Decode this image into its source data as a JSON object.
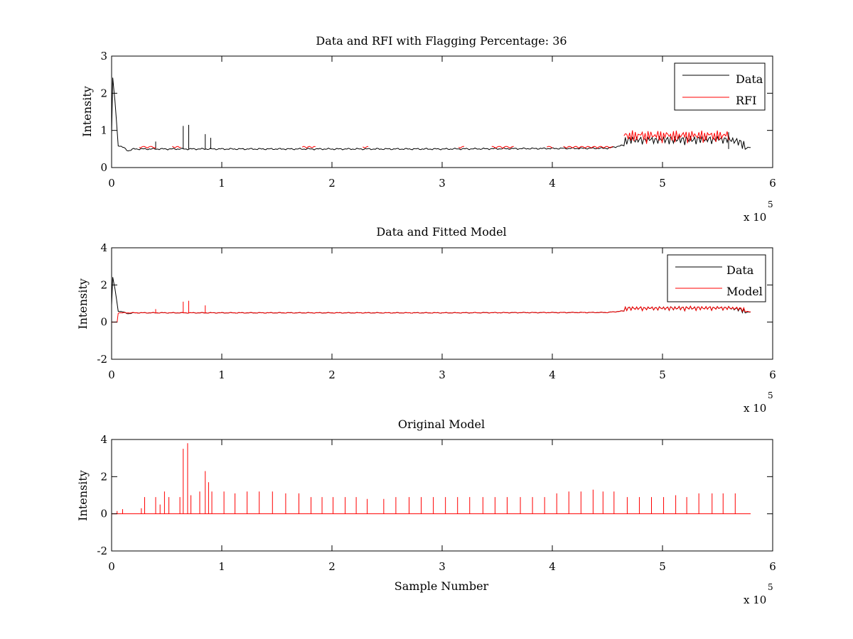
{
  "chart_data": [
    {
      "type": "line",
      "title": "Data and RFI with Flagging Percentage: 36",
      "xlabel": "",
      "ylabel": "Intensity",
      "xlim": [
        0,
        600000
      ],
      "ylim": [
        0,
        3
      ],
      "xticks": [
        "0",
        "1",
        "2",
        "3",
        "4",
        "5",
        "6"
      ],
      "yticks": [
        "0",
        "1",
        "2",
        "3"
      ],
      "x_multiplier_label": "x 10",
      "x_multiplier_exp": "5",
      "legend_position": "top-right",
      "series": [
        {
          "name": "Data",
          "color": "#000000",
          "baseline": 0.5,
          "points": [
            [
              0,
              0.9
            ],
            [
              1000,
              2.4
            ],
            [
              3000,
              1.8
            ],
            [
              6000,
              0.6
            ],
            [
              10000,
              0.55
            ],
            [
              15000,
              0.45
            ],
            [
              20000,
              0.5
            ],
            [
              100000,
              0.5
            ],
            [
              300000,
              0.5
            ],
            [
              450000,
              0.52
            ],
            [
              465000,
              0.6
            ],
            [
              560000,
              0.62
            ],
            [
              575000,
              0.5
            ],
            [
              580000,
              0.55
            ]
          ],
          "spikes": [
            [
              65000,
              1.12
            ],
            [
              70000,
              1.15
            ],
            [
              85000,
              0.9
            ],
            [
              90000,
              0.8
            ],
            [
              40000,
              0.7
            ],
            [
              560000,
              0.95
            ]
          ]
        },
        {
          "name": "RFI",
          "color": "#ff0000",
          "segments": [
            [
              25000,
              40000
            ],
            [
              55000,
              63000
            ],
            [
              173000,
              185000
            ],
            [
              228000,
              233000
            ],
            [
              315000,
              320000
            ],
            [
              345000,
              365000
            ],
            [
              395000,
              400000
            ],
            [
              410000,
              455000
            ],
            [
              465000,
              560000
            ]
          ],
          "envelope_points": [
            [
              465000,
              0.6
            ],
            [
              480000,
              0.72
            ],
            [
              500000,
              0.8
            ],
            [
              520000,
              0.78
            ],
            [
              540000,
              0.85
            ],
            [
              560000,
              0.75
            ]
          ]
        }
      ]
    },
    {
      "type": "line",
      "title": "Data and Fitted Model",
      "xlabel": "",
      "ylabel": "Intensity",
      "xlim": [
        0,
        600000
      ],
      "ylim": [
        -2,
        4
      ],
      "xticks": [
        "0",
        "1",
        "2",
        "3",
        "4",
        "5",
        "6"
      ],
      "yticks": [
        "-2",
        "0",
        "2",
        "4"
      ],
      "x_multiplier_label": "x 10",
      "x_multiplier_exp": "5",
      "legend_position": "top-right",
      "series": [
        {
          "name": "Data",
          "color": "#000000",
          "points": [
            [
              0,
              0.9
            ],
            [
              1000,
              2.4
            ],
            [
              3000,
              1.8
            ],
            [
              6000,
              0.6
            ],
            [
              10000,
              0.55
            ],
            [
              15000,
              0.45
            ],
            [
              20000,
              0.5
            ],
            [
              300000,
              0.5
            ],
            [
              450000,
              0.52
            ],
            [
              465000,
              0.6
            ],
            [
              560000,
              0.62
            ],
            [
              575000,
              0.5
            ],
            [
              580000,
              0.55
            ]
          ]
        },
        {
          "name": "Model",
          "color": "#ff0000",
          "points": [
            [
              0,
              0.0
            ],
            [
              5000,
              0.0
            ],
            [
              6000,
              0.5
            ],
            [
              100000,
              0.5
            ],
            [
              300000,
              0.5
            ],
            [
              450000,
              0.52
            ],
            [
              465000,
              0.6
            ],
            [
              560000,
              0.62
            ],
            [
              580000,
              0.55
            ]
          ],
          "spikes": [
            [
              65000,
              1.1
            ],
            [
              70000,
              1.15
            ],
            [
              85000,
              0.9
            ],
            [
              40000,
              0.7
            ]
          ]
        }
      ]
    },
    {
      "type": "line",
      "title": "Original Model",
      "xlabel": "Sample Number",
      "ylabel": "Intensity",
      "xlim": [
        0,
        600000
      ],
      "ylim": [
        -2,
        4
      ],
      "xticks": [
        "0",
        "1",
        "2",
        "3",
        "4",
        "5",
        "6"
      ],
      "yticks": [
        "-2",
        "0",
        "2",
        "4"
      ],
      "x_multiplier_label": "x 10",
      "x_multiplier_exp": "5",
      "series": [
        {
          "name": "",
          "color": "#ff0000",
          "baseline": 0.0,
          "x_end": 580000,
          "spikes": [
            [
              5000,
              0.15
            ],
            [
              10000,
              0.25
            ],
            [
              27000,
              0.3
            ],
            [
              30000,
              0.9
            ],
            [
              40000,
              0.9
            ],
            [
              44000,
              0.5
            ],
            [
              48000,
              1.2
            ],
            [
              52000,
              0.9
            ],
            [
              62000,
              0.9
            ],
            [
              65000,
              3.5
            ],
            [
              69000,
              3.8
            ],
            [
              72000,
              1.0
            ],
            [
              80000,
              1.2
            ],
            [
              85000,
              2.3
            ],
            [
              88000,
              1.7
            ],
            [
              91000,
              1.2
            ],
            [
              102000,
              1.2
            ],
            [
              112000,
              1.1
            ],
            [
              123000,
              1.2
            ],
            [
              134000,
              1.2
            ],
            [
              146000,
              1.2
            ],
            [
              158000,
              1.1
            ],
            [
              170000,
              1.1
            ],
            [
              181000,
              0.9
            ],
            [
              191000,
              0.9
            ],
            [
              201000,
              0.9
            ],
            [
              212000,
              0.9
            ],
            [
              222000,
              0.9
            ],
            [
              232000,
              0.8
            ],
            [
              247000,
              0.8
            ],
            [
              258000,
              0.9
            ],
            [
              270000,
              0.9
            ],
            [
              281000,
              0.9
            ],
            [
              292000,
              0.9
            ],
            [
              303000,
              0.9
            ],
            [
              314000,
              0.9
            ],
            [
              325000,
              0.9
            ],
            [
              337000,
              0.9
            ],
            [
              348000,
              0.9
            ],
            [
              359000,
              0.9
            ],
            [
              371000,
              0.9
            ],
            [
              382000,
              0.9
            ],
            [
              393000,
              0.9
            ],
            [
              404000,
              1.1
            ],
            [
              415000,
              1.2
            ],
            [
              426000,
              1.2
            ],
            [
              437000,
              1.3
            ],
            [
              446000,
              1.2
            ],
            [
              456000,
              1.2
            ],
            [
              468000,
              0.9
            ],
            [
              479000,
              0.9
            ],
            [
              490000,
              0.9
            ],
            [
              501000,
              0.9
            ],
            [
              512000,
              1.0
            ],
            [
              522000,
              0.9
            ],
            [
              533000,
              1.1
            ],
            [
              545000,
              1.1
            ],
            [
              555000,
              1.1
            ],
            [
              566000,
              1.1
            ]
          ]
        }
      ]
    }
  ]
}
